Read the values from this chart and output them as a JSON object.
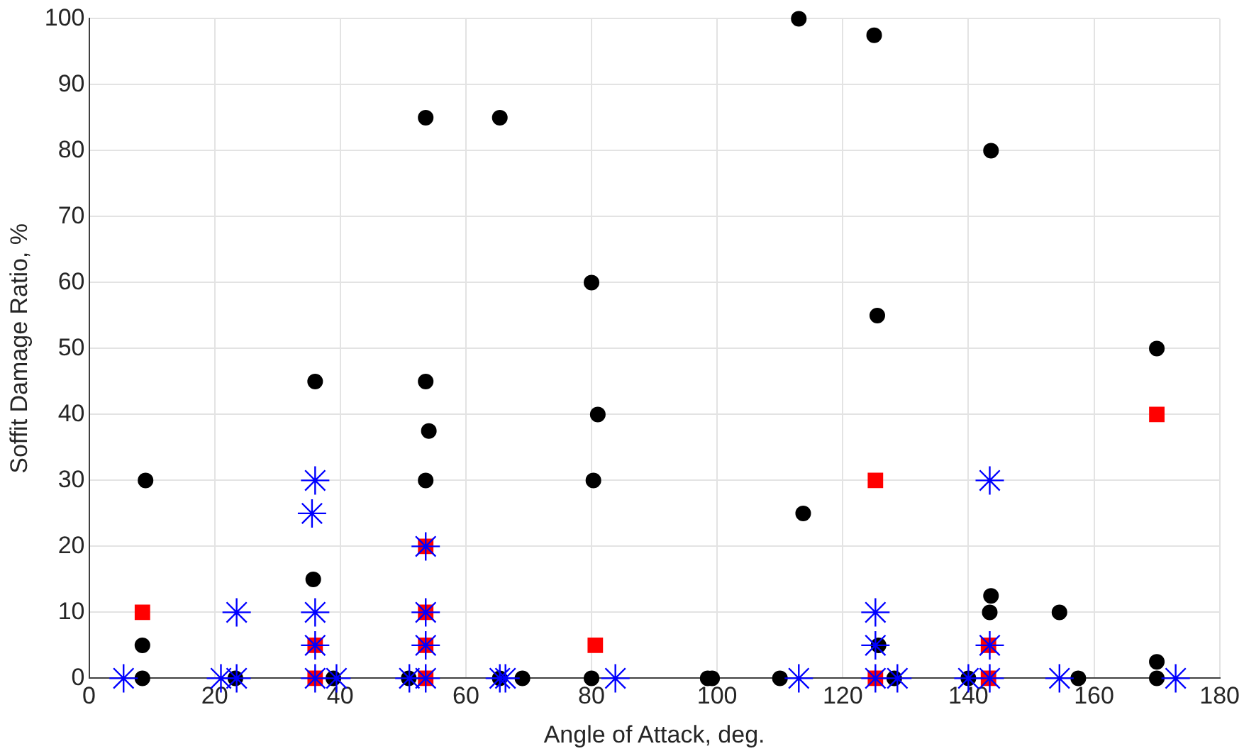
{
  "chart_data": {
    "type": "scatter",
    "xlabel": "Angle of Attack, deg.",
    "ylabel": "Soffit Damage Ratio, %",
    "xlim": [
      0,
      180
    ],
    "xticks": [
      0,
      20,
      40,
      60,
      80,
      100,
      120,
      140,
      160,
      180
    ],
    "ylim": [
      0,
      100
    ],
    "yticks": [
      0,
      10,
      20,
      30,
      40,
      50,
      60,
      70,
      80,
      90,
      100
    ],
    "grid": true,
    "legend": false,
    "series": [
      {
        "color": "#0000ff",
        "marker": "cross",
        "x": [
          5.5,
          21,
          23.5,
          23.5,
          36,
          35.5,
          36,
          36,
          36,
          39.4,
          51,
          53.6,
          53.6,
          53.6,
          53.6,
          65.4,
          66.3,
          83.8,
          113,
          125.2,
          125.2,
          125.2,
          128.7,
          140,
          143.4,
          143.4,
          143.4,
          154.5,
          173
        ],
        "values": [
          0,
          0,
          10,
          0,
          30,
          25,
          10,
          5,
          0,
          0,
          0,
          20,
          10,
          5,
          0,
          0,
          0,
          0,
          0,
          10,
          5,
          0,
          0,
          0,
          5,
          0,
          30,
          0,
          0
        ]
      },
      {
        "color": "#000000",
        "marker": "circle",
        "x": [
          9,
          8.5,
          8.5,
          23.3,
          36,
          35.7,
          38.9,
          53.6,
          53.6,
          54.1,
          53.6,
          50.9,
          65.4,
          65.4,
          69,
          80,
          81,
          80.3,
          80,
          98.5,
          99.2,
          113,
          113.7,
          110,
          125,
          125.5,
          125.7,
          128.2,
          143.6,
          143.6,
          143.4,
          154.5,
          140,
          157.5,
          170,
          170,
          170
        ],
        "values": [
          30,
          5,
          0,
          0,
          45,
          15,
          0,
          85,
          45,
          37.5,
          30,
          0,
          85,
          0,
          0,
          60,
          40,
          30,
          0,
          0,
          0,
          100,
          25,
          0,
          97.5,
          55,
          5,
          0,
          80,
          12.5,
          10,
          10,
          0,
          0,
          50,
          2.5,
          0
        ]
      },
      {
        "color": "#ff0000",
        "marker": "square",
        "x": [
          8.5,
          36,
          36,
          53.6,
          53.6,
          53.6,
          53.6,
          80.6,
          125.2,
          125.2,
          143.2,
          143.2,
          170
        ],
        "values": [
          10,
          5,
          0,
          20,
          10,
          5,
          0,
          5,
          30,
          0,
          5,
          0,
          40
        ]
      }
    ]
  }
}
